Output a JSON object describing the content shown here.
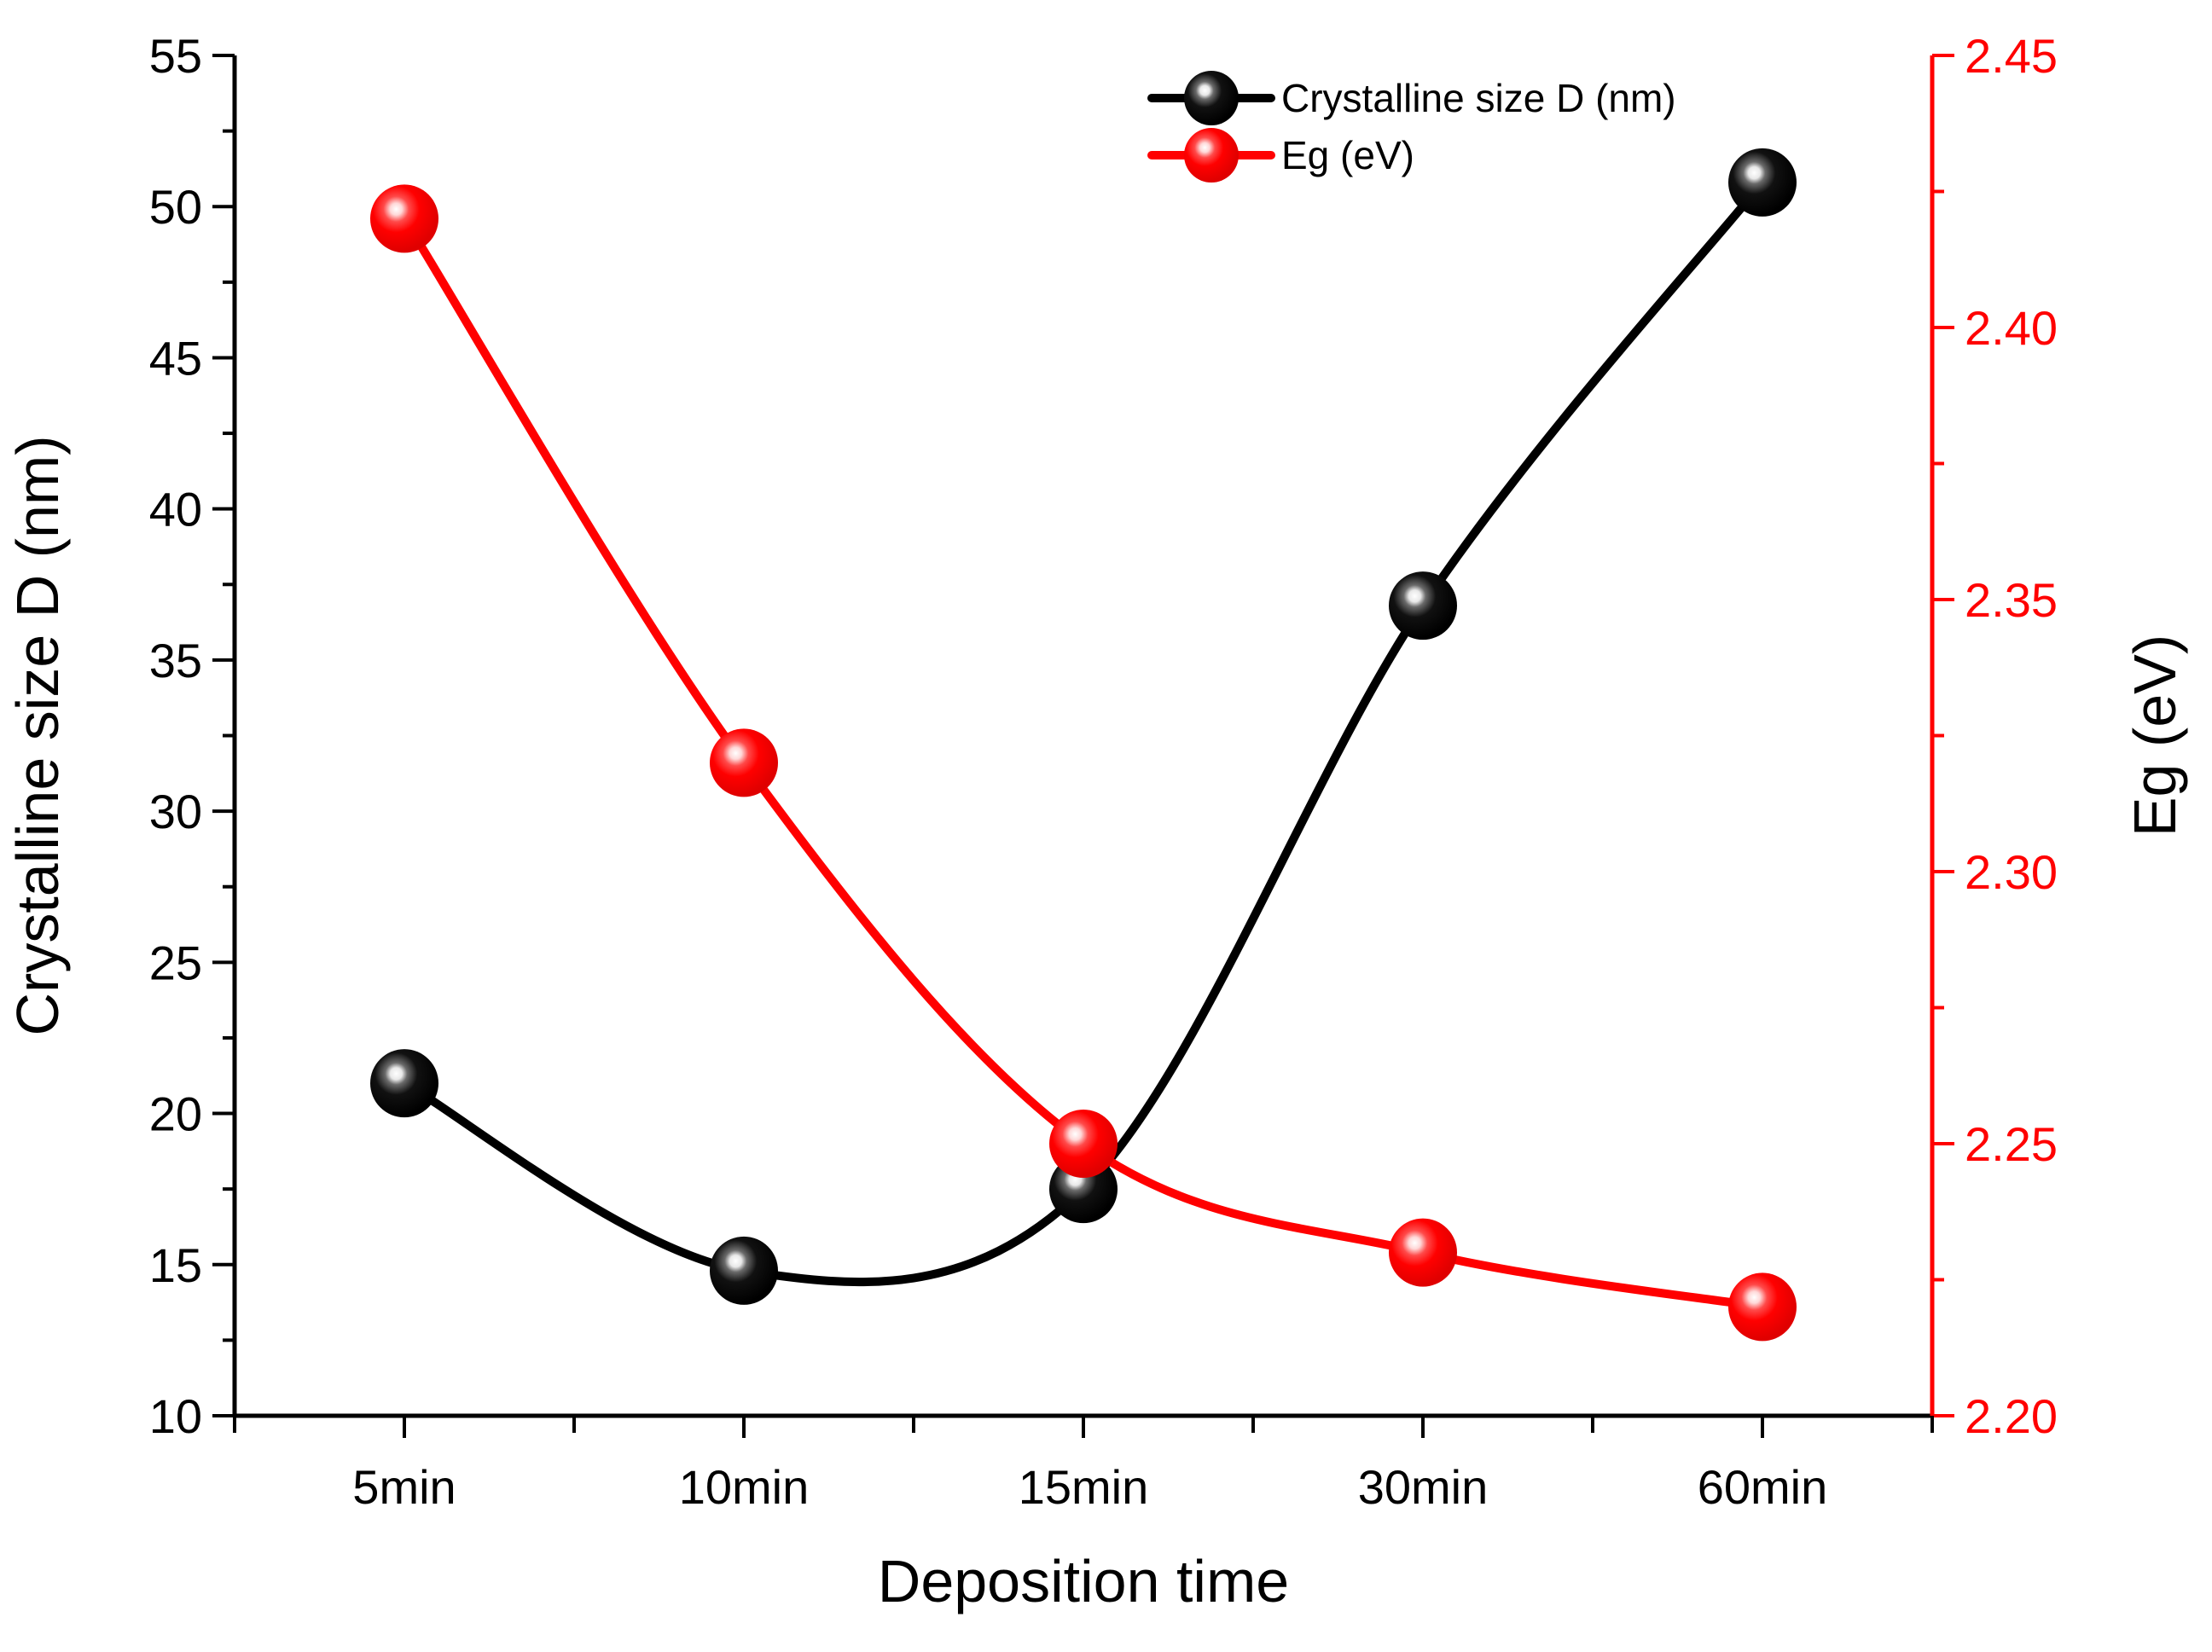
{
  "chart_data": {
    "type": "line",
    "title": "",
    "categories": [
      "5min",
      "10min",
      "15min",
      "30min",
      "60min"
    ],
    "xlabel": "Deposition time",
    "ylabel": "Crystalline size D (nm)",
    "y2label": "Eg (eV)",
    "ylim": [
      10,
      55
    ],
    "y2lim": [
      2.2,
      2.45
    ],
    "yticks": [
      "10",
      "15",
      "20",
      "25",
      "30",
      "35",
      "40",
      "45",
      "50",
      "55"
    ],
    "y2ticks": [
      "2.20",
      "2.25",
      "2.30",
      "2.35",
      "2.40",
      "2.45"
    ],
    "legend_position": "top-right",
    "grid": false,
    "series": [
      {
        "name": "Crystalline size D (nm)",
        "axis": "left",
        "color": "#000000",
        "values": [
          21.0,
          14.8,
          17.5,
          36.8,
          50.8
        ]
      },
      {
        "name": "Eg (eV)",
        "axis": "right",
        "color": "#ff0000",
        "values": [
          2.42,
          2.32,
          2.25,
          2.23,
          2.22
        ]
      }
    ]
  }
}
